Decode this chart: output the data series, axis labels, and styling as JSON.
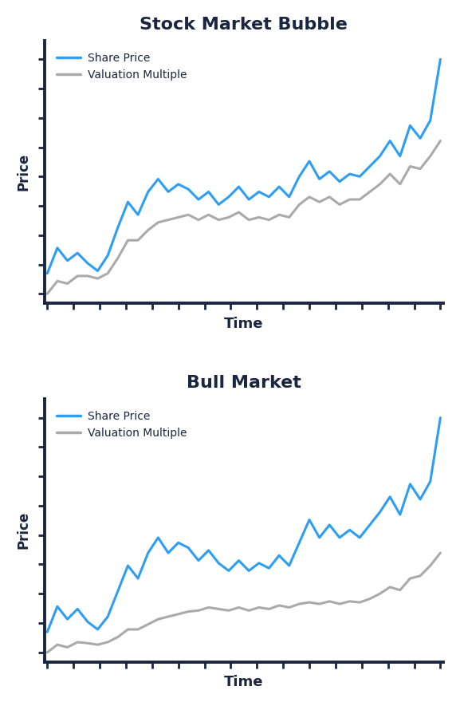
{
  "title1": "Stock Market Bubble",
  "title2": "Bull Market",
  "xlabel": "Time",
  "ylabel": "Price",
  "legend_share_price": "Share Price",
  "legend_valuation": "Valuation Multiple",
  "share_price_color": "#2E9EF4",
  "valuation_color": "#AAAAAA",
  "axis_color": "#1a2640",
  "title_color": "#1a2640",
  "label_color": "#1a2640",
  "background_color": "#FFFFFF",
  "line_width": 2.2,
  "bubble_share_price": [
    1.0,
    1.5,
    1.25,
    1.4,
    1.2,
    1.05,
    1.35,
    1.9,
    2.4,
    2.15,
    2.6,
    2.85,
    2.6,
    2.75,
    2.65,
    2.45,
    2.6,
    2.35,
    2.5,
    2.7,
    2.45,
    2.6,
    2.5,
    2.7,
    2.5,
    2.9,
    3.2,
    2.85,
    3.0,
    2.8,
    2.95,
    2.9,
    3.1,
    3.3,
    3.6,
    3.3,
    3.9,
    3.65,
    4.0,
    5.2
  ],
  "bubble_valuation": [
    0.6,
    0.85,
    0.8,
    0.95,
    0.95,
    0.9,
    1.0,
    1.3,
    1.65,
    1.65,
    1.85,
    2.0,
    2.05,
    2.1,
    2.15,
    2.05,
    2.15,
    2.05,
    2.1,
    2.2,
    2.05,
    2.1,
    2.05,
    2.15,
    2.1,
    2.35,
    2.5,
    2.4,
    2.5,
    2.35,
    2.45,
    2.45,
    2.6,
    2.75,
    2.95,
    2.75,
    3.1,
    3.05,
    3.3,
    3.6
  ],
  "bull_share_price": [
    0.9,
    1.4,
    1.15,
    1.35,
    1.1,
    0.95,
    1.2,
    1.7,
    2.2,
    1.95,
    2.45,
    2.75,
    2.45,
    2.65,
    2.55,
    2.3,
    2.5,
    2.25,
    2.1,
    2.3,
    2.1,
    2.25,
    2.15,
    2.4,
    2.2,
    2.65,
    3.1,
    2.75,
    3.0,
    2.75,
    2.9,
    2.75,
    3.0,
    3.25,
    3.55,
    3.2,
    3.8,
    3.5,
    3.85,
    5.1
  ],
  "bull_valuation": [
    0.5,
    0.65,
    0.6,
    0.7,
    0.68,
    0.65,
    0.7,
    0.8,
    0.95,
    0.95,
    1.05,
    1.15,
    1.2,
    1.25,
    1.3,
    1.32,
    1.38,
    1.35,
    1.32,
    1.38,
    1.32,
    1.38,
    1.35,
    1.42,
    1.38,
    1.45,
    1.48,
    1.45,
    1.5,
    1.45,
    1.5,
    1.48,
    1.55,
    1.65,
    1.78,
    1.72,
    1.95,
    2.0,
    2.2,
    2.45
  ]
}
